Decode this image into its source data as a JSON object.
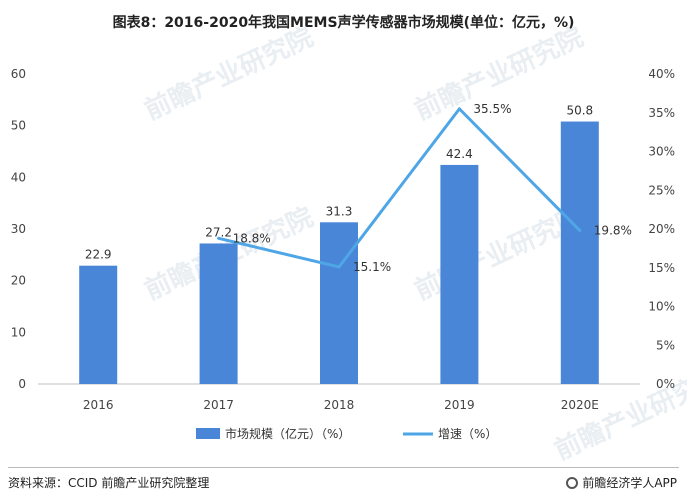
{
  "title": "图表8：2016-2020年我国MEMS声学传感器市场规模(单位：亿元，%)",
  "source": "资料来源：CCID 前瞻产业研究院整理",
  "brand": "前瞻经济学人APP",
  "chart_data": {
    "type": "bar",
    "categories": [
      "2016",
      "2017",
      "2018",
      "2019",
      "2020E"
    ],
    "series": [
      {
        "name": "市场规模（亿元）（%）",
        "kind": "bar",
        "axis": "left",
        "values": [
          22.9,
          27.2,
          31.3,
          42.4,
          50.8
        ],
        "labels": [
          "22.9",
          "27.2",
          "31.3",
          "42.4",
          "50.8"
        ],
        "color": "#4a86d8"
      },
      {
        "name": "增速（%）",
        "kind": "line",
        "axis": "right",
        "values": [
          null,
          18.8,
          15.1,
          35.5,
          19.8
        ],
        "labels": [
          "",
          "18.8%",
          "15.1%",
          "35.5%",
          "19.8%"
        ],
        "color": "#4ea6e6"
      }
    ],
    "ylim_left": [
      0,
      60
    ],
    "yticks_left": [
      "0",
      "10",
      "20",
      "30",
      "40",
      "50",
      "60"
    ],
    "ylim_right": [
      0,
      40
    ],
    "yticks_right": [
      "0%",
      "5%",
      "10%",
      "15%",
      "20%",
      "25%",
      "30%",
      "35%",
      "40%"
    ],
    "grid": false,
    "legend_position": "bottom"
  }
}
